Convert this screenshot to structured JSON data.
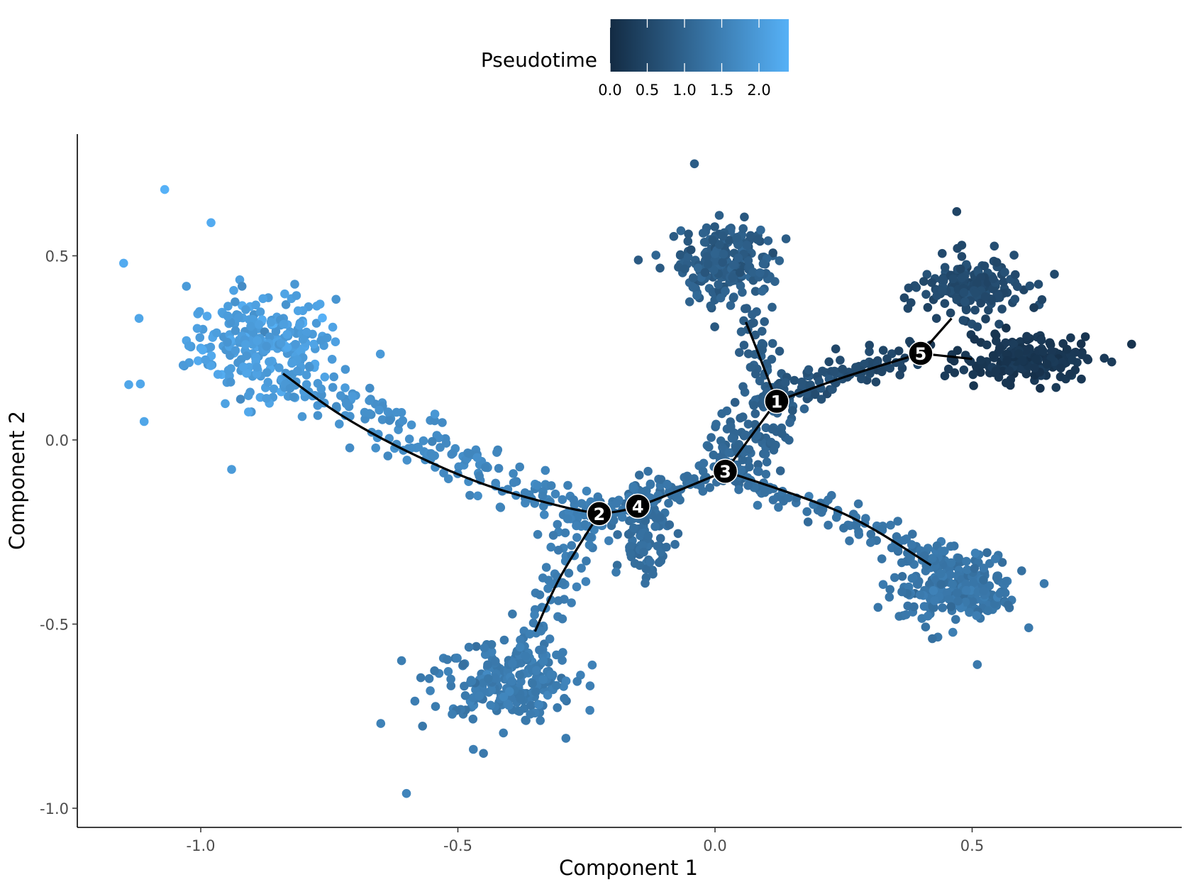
{
  "chart_data": {
    "type": "scatter",
    "title": "",
    "xlabel": "Component 1",
    "ylabel": "Component 2",
    "xlim": [
      -1.22,
      0.9
    ],
    "ylim": [
      -1.05,
      0.78
    ],
    "x_ticks": [
      -1.0,
      -0.5,
      0.0,
      0.5
    ],
    "x_tick_labels": [
      "-1.0",
      "-0.5",
      "0.0",
      "0.5"
    ],
    "y_ticks": [
      -1.0,
      -0.5,
      0.0,
      0.5
    ],
    "y_tick_labels": [
      "-1.0",
      "-0.5",
      "0.0",
      "0.5"
    ],
    "grid": false,
    "legend": {
      "title": "Pseudotime",
      "position": "top",
      "type": "colorbar",
      "range": [
        0.0,
        2.4
      ],
      "ticks": [
        0.0,
        0.5,
        1.0,
        1.5,
        2.0
      ],
      "tick_labels": [
        "0.0",
        "0.5",
        "1.0",
        "1.5",
        "2.0"
      ],
      "colors": [
        "#132b43",
        "#56b1f7"
      ]
    },
    "clusters": [
      {
        "name": "upper-left",
        "cx": -0.88,
        "cy": 0.26,
        "sx": 0.07,
        "sy": 0.07,
        "n": 260,
        "pseudotime": 2.05,
        "spread": 0.12
      },
      {
        "name": "bottom",
        "cx": -0.41,
        "cy": -0.65,
        "sx": 0.07,
        "sy": 0.05,
        "n": 230,
        "pseudotime": 1.45,
        "spread": 0.08
      },
      {
        "name": "top",
        "cx": 0.02,
        "cy": 0.48,
        "sx": 0.045,
        "sy": 0.055,
        "n": 230,
        "pseudotime": 0.9,
        "spread": 0.1
      },
      {
        "name": "right-upper",
        "cx": 0.5,
        "cy": 0.41,
        "sx": 0.05,
        "sy": 0.04,
        "n": 170,
        "pseudotime": 0.55,
        "spread": 0.08
      },
      {
        "name": "right",
        "cx": 0.6,
        "cy": 0.22,
        "sx": 0.06,
        "sy": 0.03,
        "n": 190,
        "pseudotime": 0.2,
        "spread": 0.06
      },
      {
        "name": "lower-right",
        "cx": 0.47,
        "cy": -0.4,
        "sx": 0.06,
        "sy": 0.05,
        "n": 250,
        "pseudotime": 1.35,
        "spread": 0.08
      },
      {
        "name": "middle",
        "cx": -0.14,
        "cy": -0.25,
        "sx": 0.025,
        "sy": 0.055,
        "n": 110,
        "pseudotime": 1.2,
        "spread": 0.06
      }
    ],
    "branches": [
      {
        "from": [
          -0.84,
          0.18
        ],
        "to": [
          -0.24,
          -0.22
        ],
        "n": 190,
        "width": 0.035,
        "pt_from": 1.95,
        "pt_to": 1.5
      },
      {
        "from": [
          -0.24,
          -0.22
        ],
        "to": [
          -0.36,
          -0.55
        ],
        "n": 70,
        "width": 0.03,
        "pt_from": 1.5,
        "pt_to": 1.45
      },
      {
        "from": [
          -0.24,
          -0.2
        ],
        "to": [
          0.02,
          -0.08
        ],
        "n": 80,
        "width": 0.025,
        "pt_from": 1.45,
        "pt_to": 1.2
      },
      {
        "from": [
          0.02,
          -0.08
        ],
        "to": [
          0.12,
          0.1
        ],
        "n": 110,
        "width": 0.05,
        "pt_from": 1.15,
        "pt_to": 0.95
      },
      {
        "from": [
          0.12,
          0.1
        ],
        "to": [
          0.06,
          0.35
        ],
        "n": 50,
        "width": 0.025,
        "pt_from": 0.95,
        "pt_to": 0.9
      },
      {
        "from": [
          0.12,
          0.12
        ],
        "to": [
          0.4,
          0.24
        ],
        "n": 100,
        "width": 0.02,
        "pt_from": 0.8,
        "pt_to": 0.4
      },
      {
        "from": [
          0.02,
          -0.08
        ],
        "to": [
          0.44,
          -0.33
        ],
        "n": 110,
        "width": 0.02,
        "pt_from": 1.25,
        "pt_to": 1.35
      }
    ],
    "outliers": [
      {
        "x": -1.07,
        "y": 0.68,
        "pt": 2.4
      },
      {
        "x": -0.98,
        "y": 0.59,
        "pt": 2.3
      },
      {
        "x": -1.15,
        "y": 0.48,
        "pt": 2.3
      },
      {
        "x": -1.14,
        "y": 0.15,
        "pt": 2.2
      },
      {
        "x": -1.11,
        "y": 0.05,
        "pt": 2.2
      },
      {
        "x": -1.12,
        "y": 0.33,
        "pt": 2.2
      },
      {
        "x": -0.94,
        "y": -0.08,
        "pt": 2.0
      },
      {
        "x": -0.6,
        "y": -0.96,
        "pt": 1.6
      },
      {
        "x": -0.65,
        "y": -0.77,
        "pt": 1.55
      },
      {
        "x": -0.47,
        "y": -0.84,
        "pt": 1.5
      },
      {
        "x": -0.29,
        "y": -0.81,
        "pt": 1.45
      },
      {
        "x": -0.04,
        "y": 0.75,
        "pt": 0.9
      },
      {
        "x": 0.51,
        "y": -0.61,
        "pt": 1.4
      },
      {
        "x": 0.47,
        "y": 0.62,
        "pt": 0.45
      },
      {
        "x": 0.81,
        "y": 0.26,
        "pt": 0.15
      },
      {
        "x": 0.64,
        "y": -0.39,
        "pt": 1.4
      },
      {
        "x": 0.61,
        "y": -0.51,
        "pt": 1.4
      },
      {
        "x": 0.66,
        "y": 0.45,
        "pt": 0.55
      }
    ],
    "trajectory": [
      {
        "points": [
          [
            -0.84,
            0.18
          ],
          [
            -0.73,
            0.07
          ],
          [
            -0.6,
            -0.03
          ],
          [
            -0.45,
            -0.12
          ],
          [
            -0.3,
            -0.18
          ],
          [
            -0.225,
            -0.2
          ]
        ]
      },
      {
        "points": [
          [
            -0.225,
            -0.2
          ],
          [
            -0.3,
            -0.37
          ],
          [
            -0.35,
            -0.52
          ]
        ]
      },
      {
        "points": [
          [
            -0.225,
            -0.2
          ],
          [
            -0.15,
            -0.18
          ],
          [
            0.02,
            -0.085
          ]
        ]
      },
      {
        "points": [
          [
            0.02,
            -0.085
          ],
          [
            0.12,
            0.105
          ]
        ]
      },
      {
        "points": [
          [
            0.12,
            0.105
          ],
          [
            0.08,
            0.25
          ],
          [
            0.06,
            0.32
          ]
        ]
      },
      {
        "points": [
          [
            0.12,
            0.105
          ],
          [
            0.25,
            0.17
          ],
          [
            0.4,
            0.235
          ]
        ]
      },
      {
        "points": [
          [
            0.4,
            0.235
          ],
          [
            0.46,
            0.33
          ]
        ]
      },
      {
        "points": [
          [
            0.4,
            0.235
          ],
          [
            0.5,
            0.22
          ]
        ]
      },
      {
        "points": [
          [
            0.02,
            -0.085
          ],
          [
            0.25,
            -0.2
          ],
          [
            0.42,
            -0.34
          ]
        ]
      }
    ],
    "branch_nodes": [
      {
        "label": "1",
        "x": 0.12,
        "y": 0.105
      },
      {
        "label": "2",
        "x": -0.225,
        "y": -0.2
      },
      {
        "label": "3",
        "x": 0.02,
        "y": -0.085
      },
      {
        "label": "4",
        "x": -0.15,
        "y": -0.18
      },
      {
        "label": "5",
        "x": 0.4,
        "y": 0.235
      }
    ]
  }
}
